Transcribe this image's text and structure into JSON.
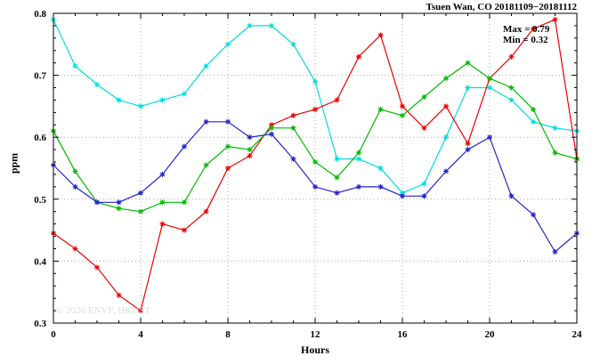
{
  "chart_data": {
    "type": "line",
    "title": "Tsuen Wan, CO 20181109−20181112",
    "xlabel": "Hours",
    "ylabel": "ppm",
    "xlim": [
      0,
      24
    ],
    "ylim": [
      0.3,
      0.8
    ],
    "xticks": [
      0,
      4,
      8,
      12,
      16,
      20,
      24
    ],
    "yticks": [
      0.3,
      0.4,
      0.5,
      0.6,
      0.7,
      0.8
    ],
    "x_minor_step": 1,
    "y_minor_step": 0.02,
    "grid": true,
    "legend": "none",
    "annotations": {
      "max": "Max = 0.79",
      "min": "Min = 0.32"
    },
    "watermark": "© 2026 ENVF, HKUST",
    "x": [
      0,
      1,
      2,
      3,
      4,
      5,
      6,
      7,
      8,
      9,
      10,
      11,
      12,
      13,
      14,
      15,
      16,
      17,
      18,
      19,
      20,
      21,
      22,
      23,
      24
    ],
    "series": [
      {
        "name": "series-cyan",
        "color": "#00dddd",
        "values": [
          0.79,
          0.715,
          0.685,
          0.66,
          0.65,
          0.66,
          0.67,
          0.715,
          0.75,
          0.78,
          0.78,
          0.75,
          0.69,
          0.565,
          0.565,
          0.55,
          0.51,
          0.525,
          0.6,
          0.68,
          0.68,
          0.66,
          0.625,
          0.615,
          0.61
        ]
      },
      {
        "name": "series-red",
        "color": "#ee0000",
        "values": [
          0.445,
          0.42,
          0.39,
          0.345,
          0.32,
          0.46,
          0.45,
          0.48,
          0.55,
          0.57,
          0.62,
          0.635,
          0.645,
          0.66,
          0.73,
          0.765,
          0.65,
          0.615,
          0.65,
          0.59,
          0.695,
          0.73,
          0.775,
          0.79,
          0.565
        ]
      },
      {
        "name": "series-green",
        "color": "#00bb00",
        "values": [
          0.61,
          0.545,
          0.495,
          0.485,
          0.48,
          0.495,
          0.495,
          0.555,
          0.585,
          0.58,
          0.615,
          0.615,
          0.56,
          0.535,
          0.575,
          0.645,
          0.635,
          0.665,
          0.695,
          0.72,
          0.695,
          0.68,
          0.645,
          0.575,
          0.565
        ]
      },
      {
        "name": "series-blue",
        "color": "#2222cc",
        "values": [
          0.555,
          0.52,
          0.495,
          0.495,
          0.51,
          0.54,
          0.585,
          0.625,
          0.625,
          0.6,
          0.605,
          0.565,
          0.52,
          0.51,
          0.52,
          0.52,
          0.505,
          0.505,
          0.545,
          0.58,
          0.6,
          0.505,
          0.475,
          0.415,
          0.445
        ]
      }
    ]
  }
}
